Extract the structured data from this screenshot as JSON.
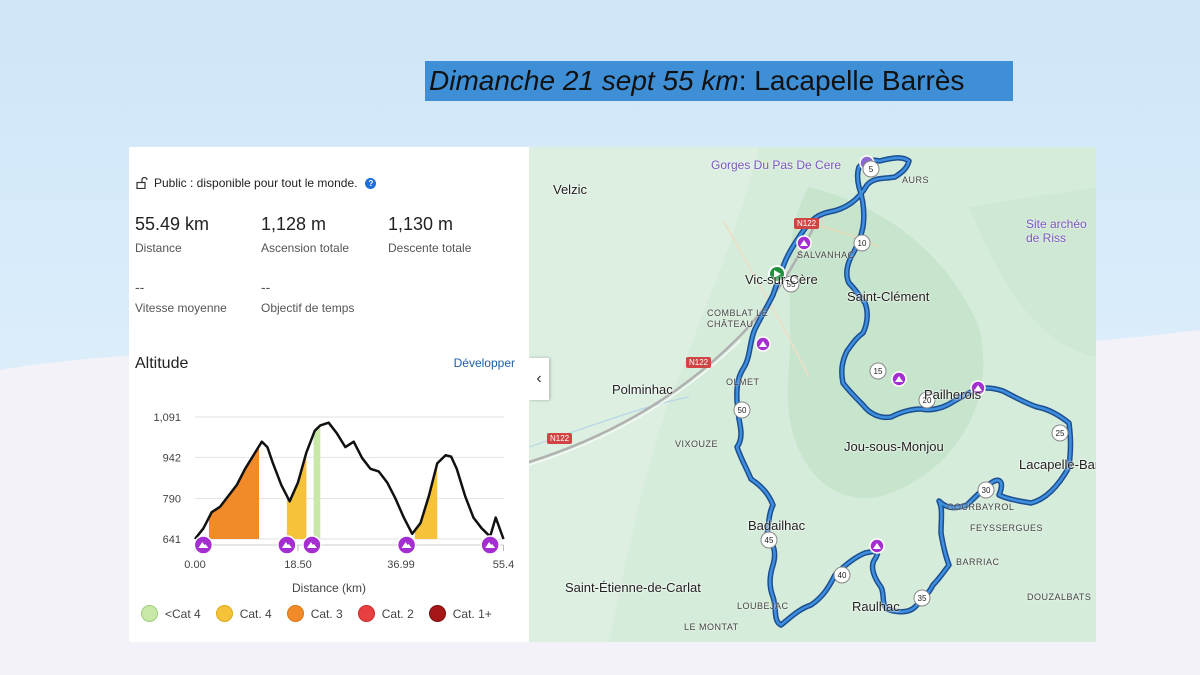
{
  "title": {
    "italic": "Dimanche 21 sept 55 km",
    "rest": " : Lacapelle Barrès"
  },
  "visibility": {
    "text": "Public : disponible pour tout le monde.",
    "help": "?"
  },
  "stats": {
    "distance": {
      "value": "55.49 km",
      "label": "Distance"
    },
    "ascent": {
      "value": "1,128 m",
      "label": "Ascension totale"
    },
    "descent": {
      "value": "1,130 m",
      "label": "Descente totale"
    },
    "avg_speed": {
      "value": "--",
      "label": "Vitesse moyenne"
    },
    "time_goal": {
      "value": "--",
      "label": "Objectif de temps"
    }
  },
  "altitude": {
    "title": "Altitude",
    "expand": "Développer",
    "x_axis_label": "Distance (km)"
  },
  "chart_data": {
    "type": "area",
    "ylabel": "",
    "xlabel": "Distance (km)",
    "yticks": [
      "1,091",
      "942",
      "790",
      "641"
    ],
    "xticks": [
      "0.00",
      "18.50",
      "36.99",
      "55.4"
    ],
    "ylim": [
      641,
      1091
    ],
    "xlim": [
      0,
      55.49
    ],
    "x": [
      0,
      1.5,
      3,
      4.5,
      6,
      7.5,
      9,
      10.5,
      12,
      13,
      14,
      15.5,
      17,
      18.5,
      20,
      21.5,
      22.5,
      24,
      25.5,
      27,
      28.5,
      30,
      31.5,
      33,
      34.5,
      36,
      37.5,
      39,
      40.5,
      42,
      43.5,
      45,
      46,
      47,
      48.5,
      50,
      51.5,
      53,
      54,
      55.4
    ],
    "y": [
      641,
      680,
      740,
      760,
      800,
      840,
      900,
      950,
      1000,
      980,
      920,
      840,
      780,
      850,
      960,
      1040,
      1060,
      1070,
      1030,
      980,
      1000,
      940,
      900,
      890,
      850,
      790,
      720,
      660,
      700,
      800,
      920,
      950,
      945,
      900,
      800,
      720,
      680,
      650,
      720,
      641
    ],
    "climbs": [
      {
        "start": 2.5,
        "end": 11.5,
        "category": "Cat. 3"
      },
      {
        "start": 16.5,
        "end": 20,
        "category": "Cat. 4"
      },
      {
        "start": 21.3,
        "end": 22.5,
        "category": "<Cat 4"
      },
      {
        "start": 39.5,
        "end": 43.5,
        "category": "Cat. 4"
      }
    ],
    "climb_markers_km": [
      1.5,
      16.5,
      21,
      38,
      53
    ]
  },
  "legend": [
    {
      "label": "<Cat 4",
      "color": "#c8e8a8",
      "border": "#9bcf7a"
    },
    {
      "label": "Cat. 4",
      "color": "#f5c23a",
      "border": "#e0a919"
    },
    {
      "label": "Cat. 3",
      "color": "#f18b2a",
      "border": "#d87615"
    },
    {
      "label": "Cat. 2",
      "color": "#e84040",
      "border": "#c92a2a"
    },
    {
      "label": "Cat. 1+",
      "color": "#a51616",
      "border": "#7d0e0e"
    }
  ],
  "map": {
    "towns": [
      {
        "name": "Velzic"
      },
      {
        "name": "Vic-sur-Cère"
      },
      {
        "name": "Saint-Clément"
      },
      {
        "name": "Polminhac"
      },
      {
        "name": "Jou-sous-Monjou"
      },
      {
        "name": "Lacapelle-Barrès"
      },
      {
        "name": "Badailhac"
      },
      {
        "name": "Saint-Étienne-de-Carlat"
      },
      {
        "name": "Raulhac"
      },
      {
        "name": "Pailherols"
      }
    ],
    "villages": [
      "SALVANHAC",
      "COMBLAT LE CHÂTEAU",
      "OLMET",
      "VIXOUZE",
      "FEYSSERGUES",
      "BARRIAC",
      "DOUZALBATS",
      "LOUBEJAC",
      "LE MONTAT",
      "COURBAYROL",
      "AURS"
    ],
    "pois": [
      "Gorges Du Pas De Cere",
      "Site archéo de Riss"
    ],
    "roads": [
      "N122",
      "N122",
      "N122"
    ],
    "km_markers": [
      "5",
      "10",
      "15",
      "20",
      "25",
      "30",
      "35",
      "40",
      "45",
      "50",
      "55"
    ]
  }
}
